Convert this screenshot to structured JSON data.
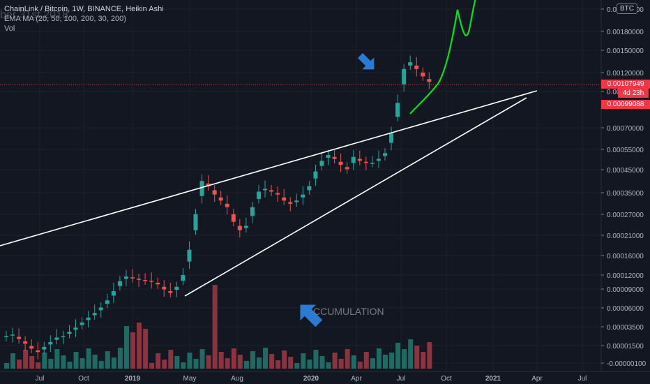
{
  "header": {
    "title": "ChainLink / Bitcoin, 1W, BINANCE, Heikin Ashi",
    "indicator": "EMA MA (20, 50, 100, 200, 30, 200)",
    "volume_label": "Vol",
    "watermark": "ber 31st 2018"
  },
  "currency_button": "BTC",
  "price_tags": {
    "last_price": "0.00107949",
    "countdown": "4d 23h",
    "level": "0.00099088"
  },
  "annotation": "CCUMULATION",
  "colors": {
    "background": "#131722",
    "up": "#26a69a",
    "down": "#ef5350",
    "volume_up": "#1e6b64",
    "volume_down": "#8b3440",
    "trendline": "#ffffff",
    "projection": "#00e61a",
    "arrow": "#2a7bd4",
    "last_price_line": "#f23645"
  },
  "chart_data": {
    "type": "candlestick",
    "title": "ChainLink / Bitcoin, 1W, BINANCE, Heikin Ashi",
    "y_axis": {
      "scale": "log",
      "tick_labels": [
        "0.00210000",
        "0.00180000",
        "0.00150000",
        "0.00120000",
        "0.00100000",
        "0.00070000",
        "0.00055000",
        "0.00045000",
        "0.00035000",
        "0.00027000",
        "0.00021000",
        "0.00016000",
        "0.00012000",
        "0.00009000",
        "0.00006000",
        "0.00003500",
        "0.00001500",
        "-0.00000100"
      ]
    },
    "x_axis": {
      "tick_labels": [
        "Jul",
        "Oct",
        "2019",
        "May",
        "Aug",
        "2020",
        "Apr",
        "Jul",
        "Oct",
        "2021",
        "Apr",
        "Jul"
      ]
    },
    "candle_closes_approx": [
      6e-05,
      6.1e-05,
      5.8e-05,
      5.5e-05,
      5.2e-05,
      5e-05,
      5.3e-05,
      5.6e-05,
      5.9e-05,
      6e-05,
      6.3e-05,
      6.6e-05,
      7e-05,
      7.4e-05,
      7.8e-05,
      8.3e-05,
      9e-05,
      0.0001,
      0.000112,
      0.000118,
      0.000116,
      0.000114,
      0.000113,
      0.000112,
      0.000108,
      0.000102,
      9.8e-05,
      0.000105,
      0.00012,
      0.00016,
      0.00024,
      0.00035,
      0.00033,
      0.0003,
      0.00028,
      0.00026,
      0.00022,
      0.0002,
      0.00021,
      0.00026,
      0.00031,
      0.00032,
      0.00031,
      0.0003,
      0.00028,
      0.00027,
      0.00028,
      0.0003,
      0.00033,
      0.00039,
      0.00044,
      0.00047,
      0.00045,
      0.00042,
      0.0004,
      0.00046,
      0.00044,
      0.00043,
      0.00043,
      0.00045,
      0.00048,
      0.0006,
      0.00085,
      0.00125,
      0.00135,
      0.00125,
      0.00115,
      0.00108
    ]
  }
}
